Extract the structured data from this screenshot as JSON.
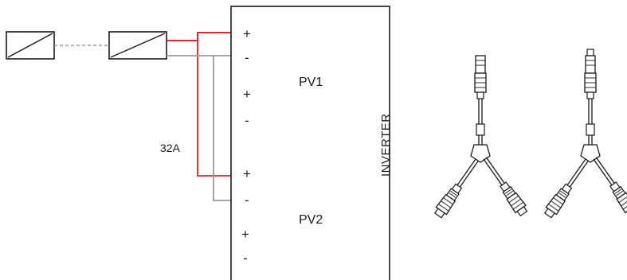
{
  "inverter": {
    "label": "INVERTER",
    "ports": [
      {
        "name": "PV1",
        "plus": "+",
        "minus": "-",
        "plus2": "+",
        "minus2": "-"
      },
      {
        "name": "PV2",
        "plus": "+",
        "minus": "-",
        "plus2": "+",
        "minus2": "-"
      }
    ]
  },
  "current_label": "32A",
  "colors": {
    "positive_wire": "#d9242b",
    "negative_wire": "#9a9a9a",
    "string_link": "#9a9a9a",
    "outline": "#1a1a1a"
  },
  "panels": {
    "count": 2,
    "icon": "pv-panel-icon"
  },
  "connectors": [
    {
      "icon": "y-branch-connector-icon",
      "variant": "male"
    },
    {
      "icon": "y-branch-connector-icon",
      "variant": "female"
    }
  ]
}
